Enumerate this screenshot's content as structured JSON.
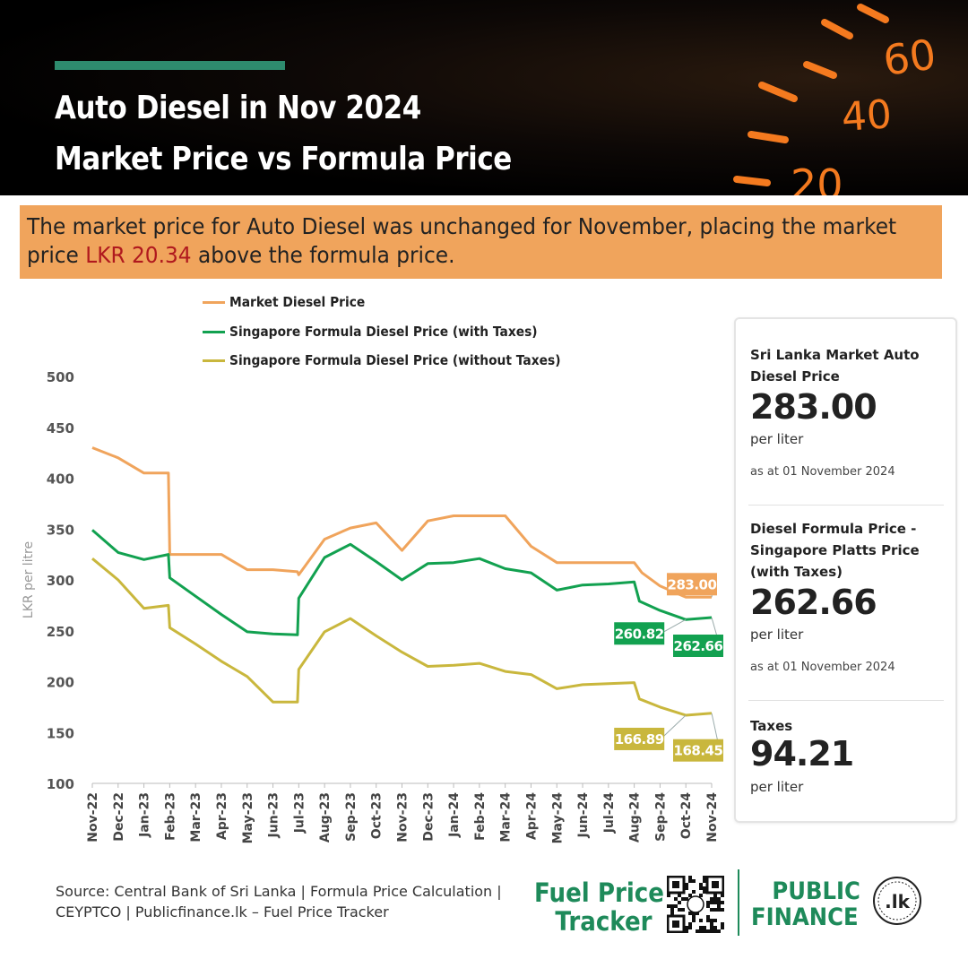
{
  "header": {
    "title_line1": "Auto Diesel in Nov 2024",
    "title_line2": "Market Price vs Formula Price",
    "gauge_labels": [
      "60",
      "40",
      "20"
    ]
  },
  "summary": {
    "text_before": "The market price for Auto Diesel was unchanged for November, placing the market price ",
    "highlight": "LKR 20.34",
    "text_after": " above the formula price."
  },
  "colors": {
    "market": "#f0a45c",
    "formula_with_taxes": "#12a150",
    "formula_without_taxes": "#c9b73d",
    "accent": "#2e8b6e",
    "brand_green": "#1e8a5a",
    "highlight_red": "#b0191e"
  },
  "chart_data": {
    "type": "line",
    "ylabel": "LKR per litre",
    "ylim": [
      100,
      500
    ],
    "yticks": [
      100,
      150,
      200,
      250,
      300,
      350,
      400,
      450,
      500
    ],
    "categories": [
      "Nov-22",
      "Dec-22",
      "Jan-23",
      "Feb-23",
      "Mar-23",
      "Apr-23",
      "May-23",
      "Jun-23",
      "Jul-23",
      "Aug-23",
      "Sep-23",
      "Oct-23",
      "Nov-23",
      "Dec-23",
      "Jan-24",
      "Feb-24",
      "Mar-24",
      "Apr-24",
      "May-24",
      "Jun-24",
      "Jul-24",
      "Aug-24",
      "Sep-24",
      "Oct-24",
      "Nov-24"
    ],
    "grid": false,
    "legend_position": "top",
    "series": [
      {
        "name": "Market Diesel Price",
        "color": "#f0a45c",
        "points": [
          [
            0,
            430
          ],
          [
            1,
            420
          ],
          [
            2,
            405
          ],
          [
            2.95,
            405
          ],
          [
            3,
            325
          ],
          [
            4,
            325
          ],
          [
            5,
            325
          ],
          [
            6,
            310
          ],
          [
            7,
            310
          ],
          [
            7.95,
            308
          ],
          [
            8,
            305
          ],
          [
            9,
            340
          ],
          [
            10,
            351
          ],
          [
            11,
            356
          ],
          [
            12,
            329
          ],
          [
            13,
            358
          ],
          [
            14,
            363
          ],
          [
            15,
            363
          ],
          [
            16,
            363
          ],
          [
            17,
            333
          ],
          [
            18,
            317
          ],
          [
            19,
            317
          ],
          [
            20,
            317
          ],
          [
            21,
            317
          ],
          [
            21.3,
            307
          ],
          [
            22,
            294
          ],
          [
            23,
            283
          ],
          [
            24,
            283
          ]
        ],
        "end_labels": [
          {
            "x": 24,
            "value": "283.00"
          }
        ]
      },
      {
        "name": "Singapore Formula Diesel Price (with Taxes)",
        "color": "#12a150",
        "points": [
          [
            0,
            349
          ],
          [
            1,
            327
          ],
          [
            2,
            320
          ],
          [
            2.95,
            325
          ],
          [
            3,
            302
          ],
          [
            4,
            284
          ],
          [
            5,
            266
          ],
          [
            6,
            249
          ],
          [
            7,
            247
          ],
          [
            7.95,
            246
          ],
          [
            8,
            282
          ],
          [
            9,
            322
          ],
          [
            10,
            335
          ],
          [
            11,
            318
          ],
          [
            12,
            300
          ],
          [
            13,
            316
          ],
          [
            14,
            317
          ],
          [
            15,
            321
          ],
          [
            16,
            311
          ],
          [
            17,
            307
          ],
          [
            18,
            290
          ],
          [
            19,
            295
          ],
          [
            20,
            296
          ],
          [
            21,
            298
          ],
          [
            21.2,
            279
          ],
          [
            22,
            270
          ],
          [
            23,
            261
          ],
          [
            24,
            263
          ]
        ],
        "end_labels": [
          {
            "x": 23,
            "value": "260.82"
          },
          {
            "x": 24,
            "value": "262.66"
          }
        ]
      },
      {
        "name": "Singapore Formula Diesel Price (without Taxes)",
        "color": "#c9b73d",
        "points": [
          [
            0,
            321
          ],
          [
            1,
            300
          ],
          [
            2,
            272
          ],
          [
            2.95,
            275
          ],
          [
            3,
            253
          ],
          [
            4,
            237
          ],
          [
            5,
            220
          ],
          [
            6,
            205
          ],
          [
            7,
            180
          ],
          [
            7.95,
            180
          ],
          [
            8,
            212
          ],
          [
            9,
            249
          ],
          [
            10,
            262
          ],
          [
            11,
            245
          ],
          [
            12,
            229
          ],
          [
            13,
            215
          ],
          [
            14,
            216
          ],
          [
            15,
            218
          ],
          [
            16,
            210
          ],
          [
            17,
            207
          ],
          [
            18,
            193
          ],
          [
            19,
            197
          ],
          [
            20,
            198
          ],
          [
            21,
            199
          ],
          [
            21.2,
            183
          ],
          [
            22,
            175
          ],
          [
            23,
            167
          ],
          [
            24,
            169
          ]
        ],
        "end_labels": [
          {
            "x": 23,
            "value": "166.89"
          },
          {
            "x": 24,
            "value": "168.45"
          }
        ]
      }
    ]
  },
  "card": {
    "s1_label": "Sri Lanka Market Auto Diesel Price",
    "s1_value": "283.00",
    "s1_unit": "per liter",
    "s1_asat": "as at 01 November 2024",
    "s2_label": "Diesel Formula Price - Singapore Platts Price (with Taxes)",
    "s2_value": "262.66",
    "s2_unit": "per liter",
    "s2_asat": "as at 01 November 2024",
    "s3_label": "Taxes",
    "s3_value": "94.21",
    "s3_unit": "per liter"
  },
  "footer": {
    "source": "Source: Central Bank of Sri Lanka | Formula Price Calculation | CEYPTCO | Publicfinance.lk – Fuel Price Tracker",
    "brand1_line1": "Fuel Price",
    "brand1_line2": "Tracker",
    "brand2_line1": "PUBLIC",
    "brand2_line2": "FINANCE",
    "lk_badge": ".lk"
  }
}
